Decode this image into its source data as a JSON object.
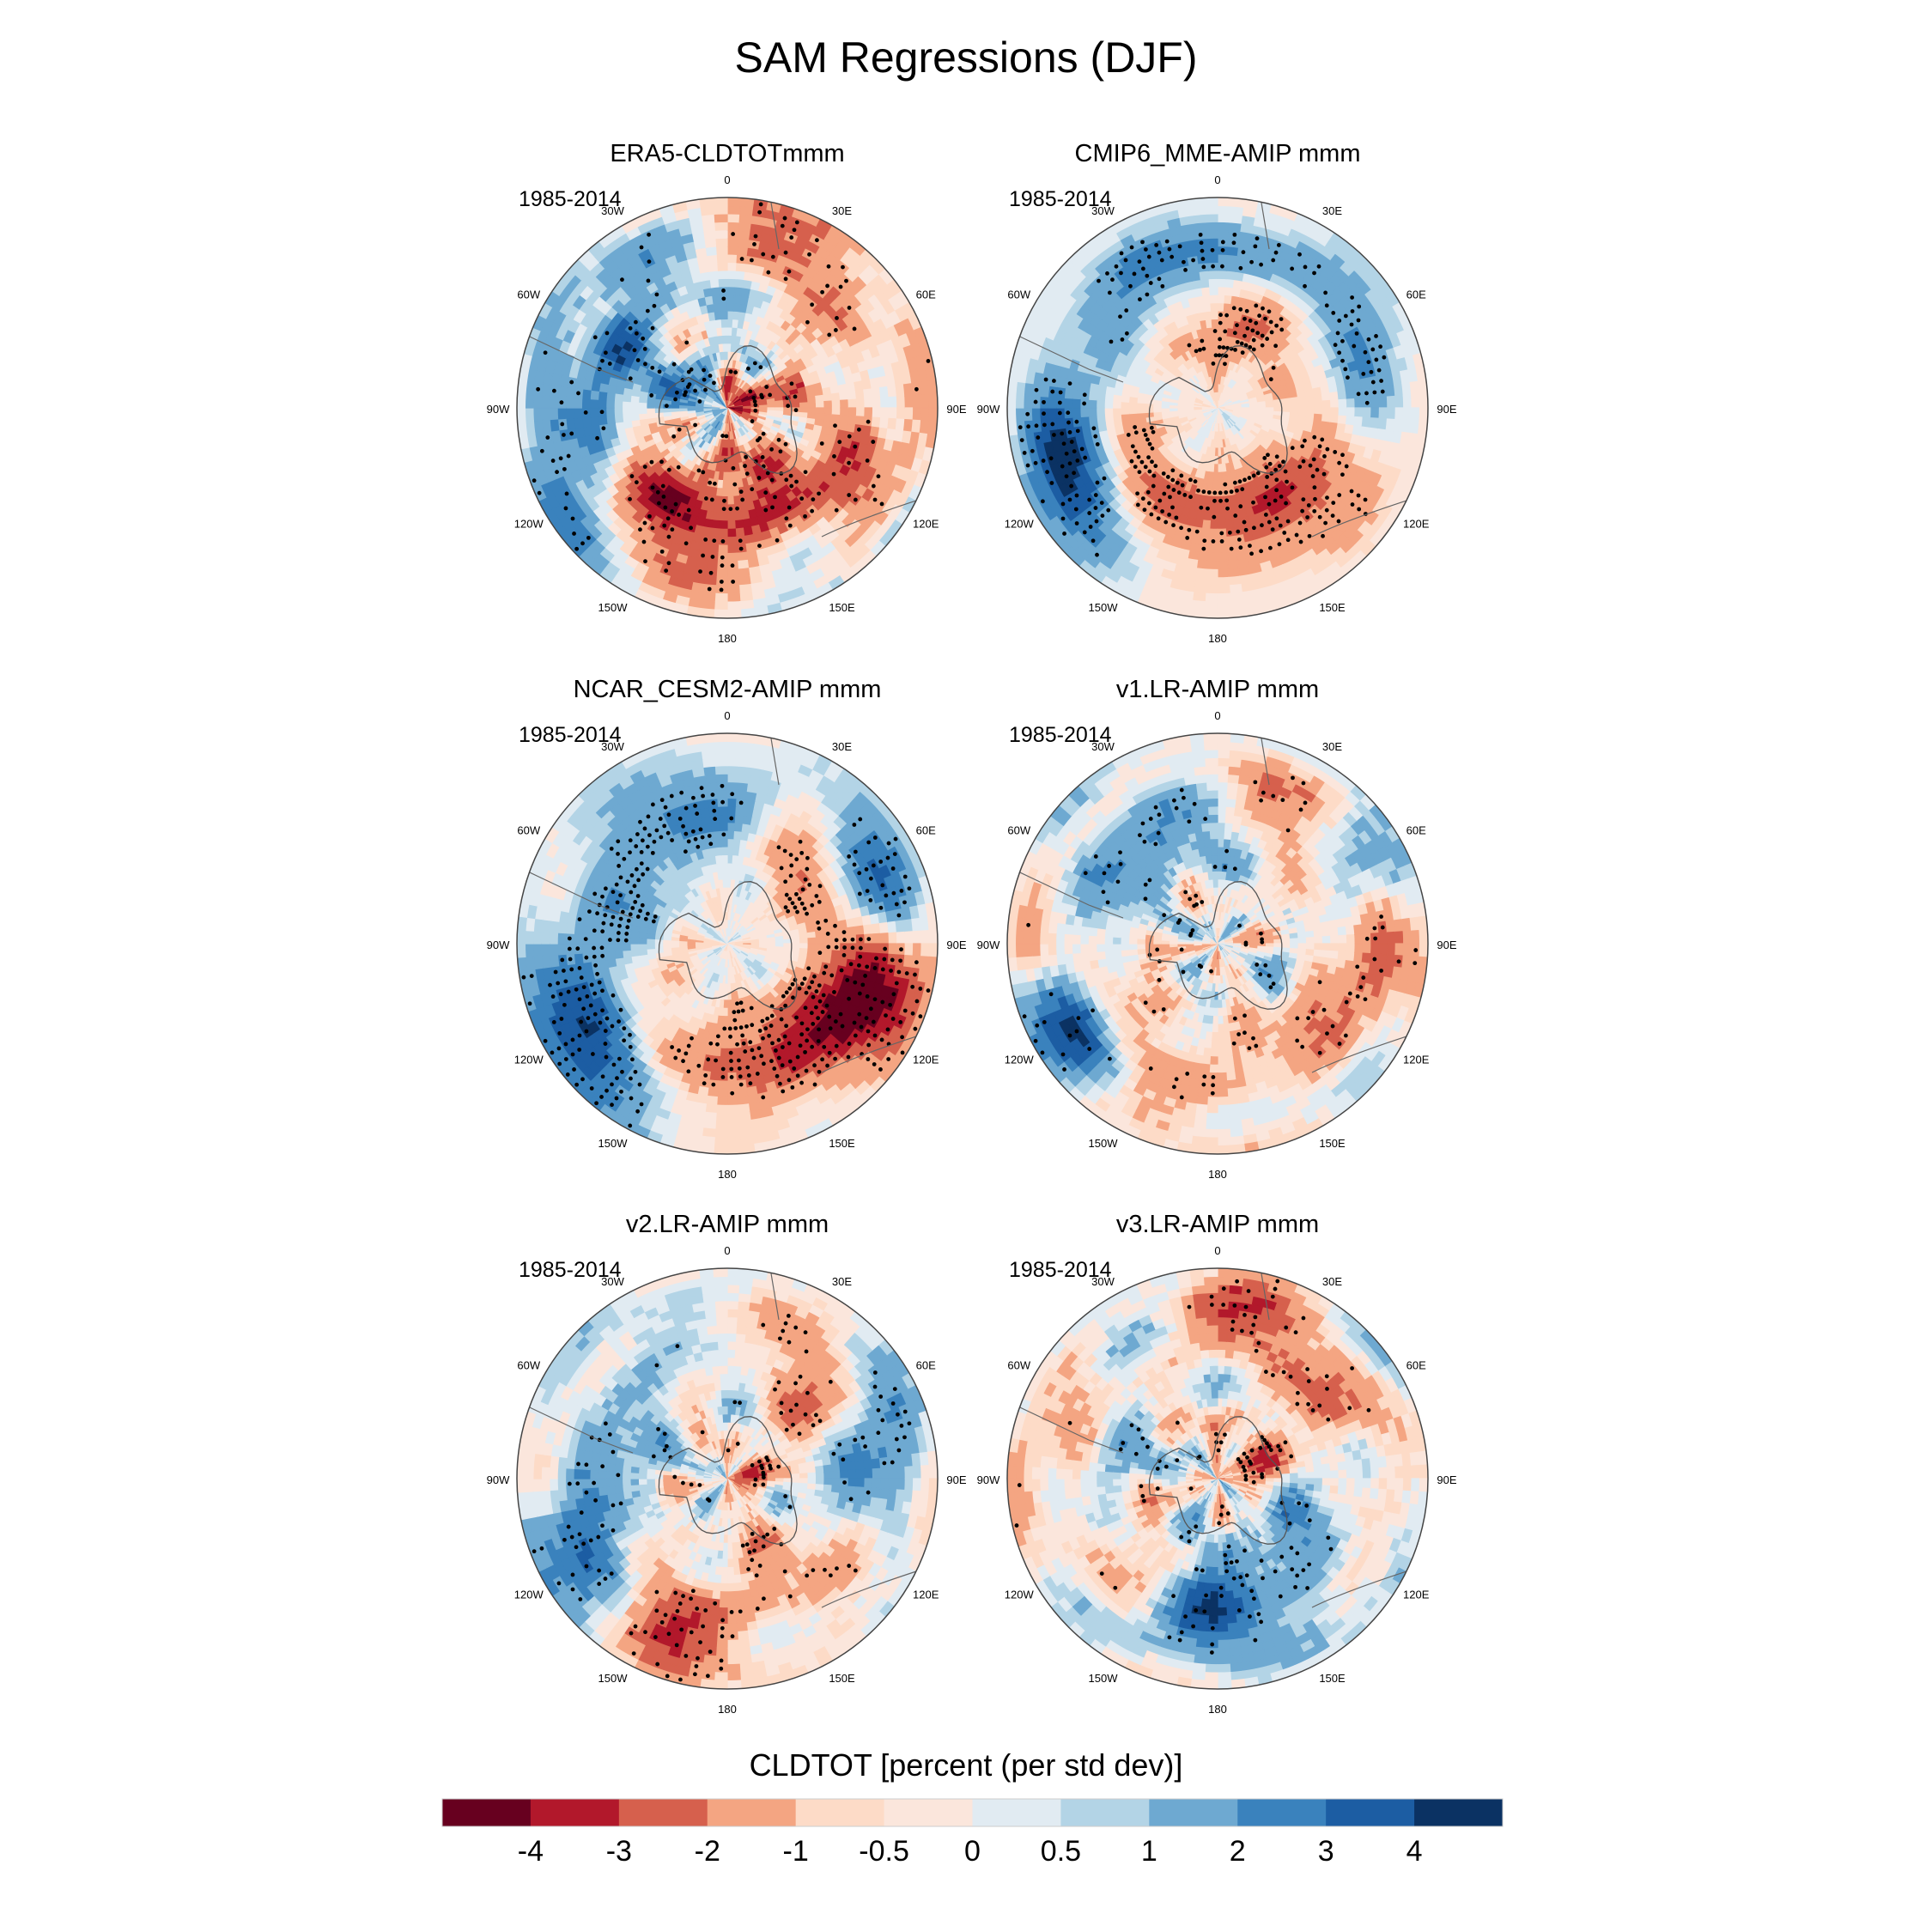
{
  "figure": {
    "title": "SAM Regressions (DJF)",
    "colorbar_label": "CLDTOT [percent (per std dev)]"
  },
  "chart_data": {
    "type": "heatmap",
    "title": "SAM Regressions (DJF)",
    "projection": "south-polar-stereographic",
    "variable": "CLDTOT",
    "units": "percent (per std dev)",
    "colorbar": {
      "boundaries": [
        -4,
        -3,
        -2,
        -1,
        -0.5,
        0,
        0.5,
        1,
        2,
        3,
        4
      ],
      "tick_labels": [
        "-4",
        "-3",
        "-2",
        "-1",
        "-0.5",
        "0",
        "0.5",
        "1",
        "2",
        "3",
        "4"
      ],
      "colors": [
        "#67001f",
        "#b2182b",
        "#d6604d",
        "#f4a582",
        "#fddbc7",
        "#fbe6dc",
        "#e1ebf2",
        "#b3d4e6",
        "#6ea9d1",
        "#3a82bd",
        "#1c5da3",
        "#0b3263"
      ]
    },
    "lon_labels": [
      "0",
      "30E",
      "60E",
      "90E",
      "120E",
      "150E",
      "180",
      "150W",
      "120W",
      "90W",
      "60W",
      "30W"
    ],
    "lon_angles_deg": [
      0,
      30,
      60,
      90,
      120,
      150,
      180,
      210,
      240,
      270,
      300,
      330
    ],
    "panels": [
      {
        "title": "ERA5-CLDTOTmmm",
        "period": "1985-2014",
        "seed": 11,
        "noise": 1.4,
        "inner_noise": 2.4,
        "stipple_density": 0.25,
        "features": [
          {
            "lon": 180,
            "lat": -60,
            "v": -2.6,
            "w": 45,
            "h": 11
          },
          {
            "lon": 210,
            "lat": -55,
            "v": -1.8,
            "w": 25,
            "h": 12
          },
          {
            "lon": 35,
            "lat": -42,
            "v": -2.5,
            "w": 30,
            "h": 10
          },
          {
            "lon": 100,
            "lat": -55,
            "v": -1.5,
            "w": 30,
            "h": 12
          },
          {
            "lon": 270,
            "lat": -45,
            "v": 1.6,
            "w": 25,
            "h": 14
          },
          {
            "lon": 235,
            "lat": -40,
            "v": 1.5,
            "w": 18,
            "h": 10
          },
          {
            "lon": 300,
            "lat": -55,
            "v": 3.2,
            "w": 10,
            "h": 6
          },
          {
            "lon": 330,
            "lat": -50,
            "v": 1.0,
            "w": 30,
            "h": 12
          },
          {
            "lon": 60,
            "lat": -48,
            "v": 1.0,
            "w": 25,
            "h": 10
          },
          {
            "lon": 60,
            "lat": -85,
            "v": -3.2,
            "w": 60,
            "h": 6
          },
          {
            "lon": 300,
            "lat": -80,
            "v": 2.5,
            "w": 40,
            "h": 6
          }
        ]
      },
      {
        "title": "CMIP6_MME-AMIP  mmm",
        "period": "1985-2014",
        "seed": 23,
        "noise": 0.5,
        "inner_noise": 0.7,
        "stipple_density": 0.55,
        "features": [
          {
            "lon": 180,
            "lat": -60,
            "v": -2.5,
            "w": 80,
            "h": 9
          },
          {
            "lon": 130,
            "lat": -45,
            "v": -1.4,
            "w": 30,
            "h": 12
          },
          {
            "lon": 240,
            "lat": -44,
            "v": 3.6,
            "w": 18,
            "h": 8
          },
          {
            "lon": 260,
            "lat": -44,
            "v": 2.2,
            "w": 14,
            "h": 8
          },
          {
            "lon": 75,
            "lat": -48,
            "v": 2.2,
            "w": 30,
            "h": 9
          },
          {
            "lon": 355,
            "lat": -45,
            "v": 2.2,
            "w": 35,
            "h": 7
          },
          {
            "lon": 300,
            "lat": -55,
            "v": 1.8,
            "w": 25,
            "h": 8
          },
          {
            "lon": 20,
            "lat": -62,
            "v": -1.8,
            "w": 20,
            "h": 8
          },
          {
            "lon": 0,
            "lat": -75,
            "v": -1.0,
            "w": 40,
            "h": 8
          }
        ]
      },
      {
        "title": "NCAR_CESM2-AMIP  mmm",
        "period": "1985-2014",
        "seed": 37,
        "noise": 0.6,
        "inner_noise": 0.9,
        "stipple_density": 0.55,
        "features": [
          {
            "lon": 150,
            "lat": -55,
            "v": -3.0,
            "w": 55,
            "h": 10
          },
          {
            "lon": 110,
            "lat": -45,
            "v": -3.4,
            "w": 18,
            "h": 10
          },
          {
            "lon": 40,
            "lat": -58,
            "v": -2.0,
            "w": 20,
            "h": 10
          },
          {
            "lon": 235,
            "lat": -42,
            "v": 4.2,
            "w": 22,
            "h": 10
          },
          {
            "lon": 65,
            "lat": -44,
            "v": 3.6,
            "w": 18,
            "h": 8
          },
          {
            "lon": 350,
            "lat": -52,
            "v": 2.0,
            "w": 30,
            "h": 10
          },
          {
            "lon": 290,
            "lat": -58,
            "v": 1.8,
            "w": 25,
            "h": 10
          },
          {
            "lon": 270,
            "lat": -75,
            "v": -0.7,
            "w": 30,
            "h": 8
          }
        ]
      },
      {
        "title": "v1.LR-AMIP  mmm",
        "period": "1985-2014",
        "seed": 41,
        "noise": 1.2,
        "inner_noise": 1.8,
        "stipple_density": 0.3,
        "features": [
          {
            "lon": 240,
            "lat": -42,
            "v": 4.0,
            "w": 12,
            "h": 8
          },
          {
            "lon": 300,
            "lat": -52,
            "v": 3.0,
            "w": 14,
            "h": 6
          },
          {
            "lon": 330,
            "lat": -58,
            "v": 1.8,
            "w": 40,
            "h": 8
          },
          {
            "lon": 150,
            "lat": -58,
            "v": -1.8,
            "w": 50,
            "h": 12
          },
          {
            "lon": 140,
            "lat": -68,
            "v": 1.6,
            "w": 30,
            "h": 6
          },
          {
            "lon": 60,
            "lat": -48,
            "v": 1.6,
            "w": 20,
            "h": 10
          },
          {
            "lon": 90,
            "lat": -45,
            "v": -2.2,
            "w": 14,
            "h": 8
          },
          {
            "lon": 30,
            "lat": -50,
            "v": -2.0,
            "w": 20,
            "h": 10
          },
          {
            "lon": 275,
            "lat": -55,
            "v": -1.5,
            "w": 25,
            "h": 10
          }
        ]
      },
      {
        "title": "v2.LR-AMIP  mmm",
        "period": "1985-2014",
        "seed": 53,
        "noise": 1.2,
        "inner_noise": 1.8,
        "stipple_density": 0.3,
        "features": [
          {
            "lon": 45,
            "lat": -55,
            "v": -2.0,
            "w": 20,
            "h": 12
          },
          {
            "lon": 150,
            "lat": -55,
            "v": -1.6,
            "w": 30,
            "h": 12
          },
          {
            "lon": 200,
            "lat": -45,
            "v": -2.5,
            "w": 14,
            "h": 10
          },
          {
            "lon": 245,
            "lat": -45,
            "v": 2.6,
            "w": 16,
            "h": 10
          },
          {
            "lon": 75,
            "lat": -45,
            "v": 2.2,
            "w": 18,
            "h": 10
          },
          {
            "lon": 300,
            "lat": -55,
            "v": 2.0,
            "w": 18,
            "h": 8
          },
          {
            "lon": 110,
            "lat": -55,
            "v": 0.9,
            "w": 25,
            "h": 10
          },
          {
            "lon": 90,
            "lat": -85,
            "v": -2.2,
            "w": 40,
            "h": 6
          }
        ]
      },
      {
        "title": "v3.LR-AMIP  mmm",
        "period": "1985-2014",
        "seed": 67,
        "noise": 1.4,
        "inner_noise": 2.0,
        "stipple_density": 0.22,
        "features": [
          {
            "lon": 185,
            "lat": -48,
            "v": 3.6,
            "w": 14,
            "h": 8
          },
          {
            "lon": 140,
            "lat": -62,
            "v": 2.5,
            "w": 30,
            "h": 8
          },
          {
            "lon": 115,
            "lat": -48,
            "v": 2.6,
            "w": 12,
            "h": 8
          },
          {
            "lon": 10,
            "lat": -45,
            "v": -2.8,
            "w": 18,
            "h": 8
          },
          {
            "lon": 60,
            "lat": -48,
            "v": -2.5,
            "w": 12,
            "h": 8
          },
          {
            "lon": 110,
            "lat": -50,
            "v": -2.0,
            "w": 16,
            "h": 8
          },
          {
            "lon": 270,
            "lat": -50,
            "v": -1.2,
            "w": 30,
            "h": 12
          },
          {
            "lon": 60,
            "lat": -80,
            "v": -2.0,
            "w": 40,
            "h": 8
          },
          {
            "lon": 290,
            "lat": -58,
            "v": 1.5,
            "w": 25,
            "h": 8
          }
        ]
      }
    ]
  }
}
